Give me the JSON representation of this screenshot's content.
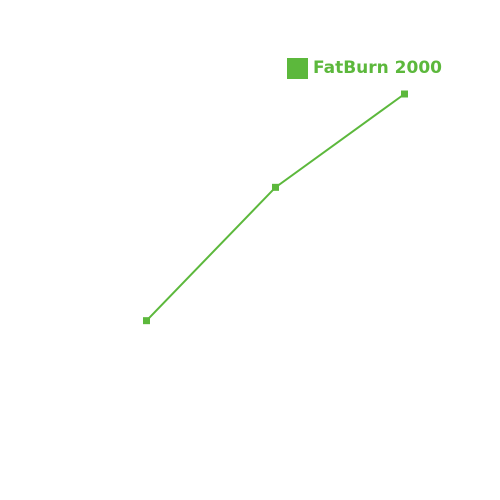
{
  "chart_data": {
    "type": "line",
    "title": "",
    "xlabel": "",
    "ylabel": "",
    "categories": [
      "",
      "",
      ""
    ],
    "series": [
      {
        "name": "FatBurn 2000",
        "values": [
          1.0,
          2.0,
          2.7
        ],
        "color": "#5cb83c"
      }
    ],
    "ylim": [
      0,
      3
    ],
    "grid": false,
    "axes_visible": false,
    "legend_position": "top-right",
    "marker": "square"
  }
}
